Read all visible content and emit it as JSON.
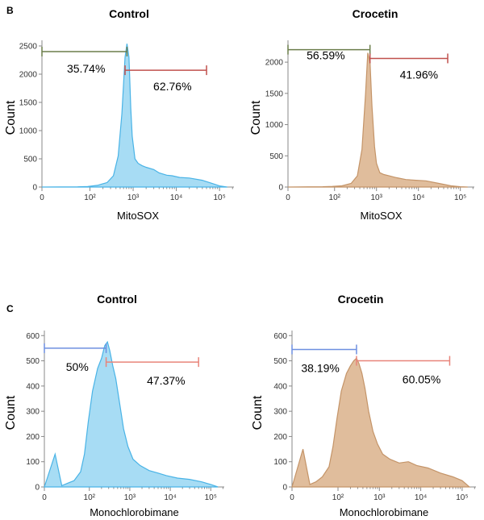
{
  "panels": {
    "b": {
      "letter": "B"
    },
    "c": {
      "letter": "C"
    }
  },
  "colors": {
    "control_fill": "#a7dcf4",
    "control_stroke": "#49b3e6",
    "crocetin_fill": "#e0bd9c",
    "crocetin_stroke": "#c49468",
    "gate_olive": "#6b7d4a",
    "gate_red": "#c0504d",
    "gate_blue": "#6e8fe0",
    "gate_salmon": "#e8847a",
    "axis": "#888888"
  },
  "chart_data": [
    {
      "id": "b-control",
      "type": "area",
      "title": "Control",
      "xlabel": "MitoSOX",
      "ylabel": "Count",
      "xscale": "log",
      "xtick_labels": [
        "0",
        "10²",
        "10³",
        "10⁴",
        "10⁵"
      ],
      "xticks": [
        0,
        100,
        1000,
        10000,
        100000
      ],
      "ylim": [
        0,
        2600
      ],
      "yticks": [
        0,
        500,
        1000,
        1500,
        2000,
        2500
      ],
      "series": [
        {
          "x": [
            0,
            30,
            80,
            150,
            250,
            350,
            450,
            550,
            650,
            720,
            800,
            880,
            950,
            1100,
            1300,
            1600,
            2000,
            3000,
            4000,
            6000,
            8000,
            12000,
            20000,
            40000,
            70000,
            100000,
            150000
          ],
          "values": [
            0,
            5,
            10,
            30,
            80,
            200,
            550,
            1300,
            2300,
            2540,
            2300,
            1400,
            900,
            500,
            420,
            380,
            350,
            310,
            250,
            210,
            200,
            170,
            160,
            120,
            60,
            20,
            0
          ]
        }
      ],
      "gates": [
        {
          "label": "35.74%",
          "from": 0,
          "to": 720,
          "color": "gate_olive",
          "y": 2400
        },
        {
          "label": "62.76%",
          "from": 650,
          "to": 50000,
          "color": "gate_red",
          "y": 2070
        }
      ]
    },
    {
      "id": "b-crocetin",
      "type": "area",
      "title": "Crocetin",
      "xlabel": "MitoSOX",
      "ylabel": "Count",
      "xscale": "log",
      "xtick_labels": [
        "0",
        "10²",
        "10³",
        "10⁴",
        "10⁵"
      ],
      "xticks": [
        0,
        100,
        1000,
        10000,
        100000
      ],
      "ylim": [
        0,
        2350
      ],
      "yticks": [
        0,
        500,
        1000,
        1500,
        2000
      ],
      "series": [
        {
          "x": [
            0,
            30,
            80,
            150,
            250,
            350,
            450,
            550,
            620,
            700,
            780,
            900,
            1000,
            1200,
            1500,
            2000,
            3000,
            5000,
            8000,
            15000,
            30000,
            60000,
            100000,
            150000
          ],
          "values": [
            0,
            5,
            10,
            20,
            60,
            180,
            600,
            1500,
            2150,
            2000,
            1300,
            650,
            380,
            230,
            200,
            180,
            150,
            120,
            110,
            100,
            60,
            20,
            5,
            0
          ]
        }
      ],
      "gates": [
        {
          "label": "56.59%",
          "from": 0,
          "to": 700,
          "color": "gate_olive",
          "y": 2200
        },
        {
          "label": "41.96%",
          "from": 700,
          "to": 50000,
          "color": "gate_red",
          "y": 2060
        }
      ]
    },
    {
      "id": "c-control",
      "type": "area",
      "title": "Control",
      "xlabel": "Monochlorobimane",
      "ylabel": "Count",
      "xscale": "log",
      "xtick_labels": [
        "0",
        "10²",
        "10³",
        "10⁴",
        "10⁵"
      ],
      "xticks": [
        0,
        100,
        1000,
        10000,
        100000
      ],
      "ylim": [
        0,
        620
      ],
      "yticks": [
        0,
        100,
        200,
        300,
        400,
        500,
        600
      ],
      "series": [
        {
          "x": [
            0,
            2,
            5,
            10,
            20,
            40,
            60,
            90,
            120,
            160,
            200,
            240,
            280,
            320,
            380,
            450,
            550,
            700,
            900,
            1200,
            1800,
            3000,
            5000,
            8000,
            15000,
            30000,
            60000,
            100000,
            150000
          ],
          "values": [
            0,
            130,
            5,
            15,
            25,
            60,
            130,
            260,
            380,
            470,
            510,
            560,
            575,
            540,
            480,
            430,
            340,
            230,
            160,
            110,
            85,
            65,
            55,
            45,
            35,
            30,
            20,
            10,
            0
          ]
        }
      ],
      "gates": [
        {
          "label": "50%",
          "from": 0,
          "to": 260,
          "color": "gate_blue",
          "y": 550
        },
        {
          "label": "47.37%",
          "from": 260,
          "to": 50000,
          "color": "gate_salmon",
          "y": 495
        }
      ]
    },
    {
      "id": "c-crocetin",
      "type": "area",
      "title": "Crocetin",
      "xlabel": "Monochlorobimane",
      "ylabel": "Count",
      "xscale": "log",
      "xtick_labels": [
        "0",
        "10²",
        "10³",
        "10⁴",
        "10⁵"
      ],
      "xticks": [
        0,
        100,
        1000,
        10000,
        100000
      ],
      "ylim": [
        0,
        620
      ],
      "yticks": [
        0,
        100,
        200,
        300,
        400,
        500,
        600
      ],
      "series": [
        {
          "x": [
            0,
            2,
            5,
            10,
            20,
            40,
            60,
            90,
            120,
            160,
            200,
            240,
            280,
            320,
            380,
            450,
            550,
            700,
            900,
            1200,
            1800,
            3000,
            5000,
            8000,
            15000,
            30000,
            60000,
            100000,
            150000
          ],
          "values": [
            0,
            150,
            10,
            20,
            40,
            80,
            160,
            270,
            380,
            450,
            480,
            500,
            510,
            490,
            450,
            390,
            300,
            220,
            170,
            130,
            110,
            95,
            100,
            85,
            75,
            55,
            40,
            25,
            0
          ]
        }
      ],
      "gates": [
        {
          "label": "38.19%",
          "from": 0,
          "to": 280,
          "color": "gate_blue",
          "y": 545
        },
        {
          "label": "60.05%",
          "from": 280,
          "to": 50000,
          "color": "gate_salmon",
          "y": 500
        }
      ]
    }
  ]
}
